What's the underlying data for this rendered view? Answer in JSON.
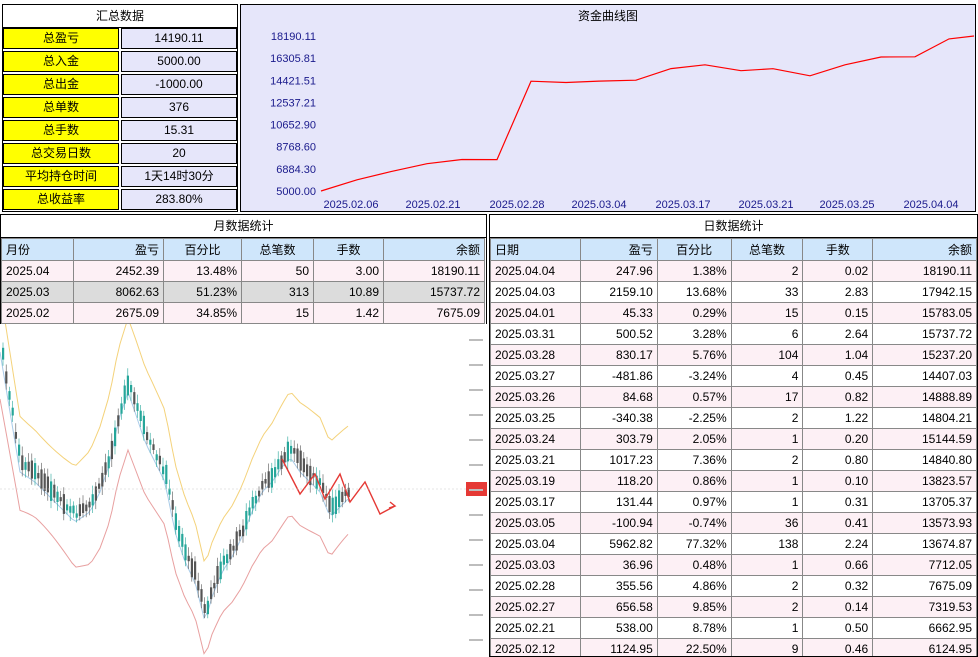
{
  "summary": {
    "title": "汇总数据",
    "rows": [
      {
        "label": "总盈亏",
        "value": "14190.11"
      },
      {
        "label": "总入金",
        "value": "5000.00"
      },
      {
        "label": "总出金",
        "value": "-1000.00"
      },
      {
        "label": "总单数",
        "value": "376"
      },
      {
        "label": "总手数",
        "value": "15.31"
      },
      {
        "label": "总交易日数",
        "value": "20"
      },
      {
        "label": "平均持仓时间",
        "value": "1天14时30分"
      },
      {
        "label": "总收益率",
        "value": "283.80%"
      }
    ]
  },
  "chart_data": {
    "type": "line",
    "title": "资金曲线图",
    "ylim": [
      5000.0,
      18190.11
    ],
    "yticks": [
      "18190.11",
      "16305.81",
      "14421.51",
      "12537.21",
      "10652.90",
      "8768.60",
      "6884.30",
      "5000.00"
    ],
    "xticks": [
      "2025.02.06",
      "2025.02.21",
      "2025.02.28",
      "2025.03.04",
      "2025.03.17",
      "2025.03.21",
      "2025.03.25",
      "2025.04.04"
    ],
    "series": [
      {
        "values": [
          5000,
          5950,
          6650,
          7320,
          7680,
          7675,
          14340,
          14230,
          14350,
          14425,
          15420,
          15738,
          15240,
          15410,
          14805,
          15740,
          16400,
          16420,
          17942,
          18190
        ]
      }
    ],
    "grid": false,
    "line_color": "#ff0000"
  },
  "monthly": {
    "title": "月数据统计",
    "headers": [
      "月份",
      "盈亏",
      "百分比",
      "总笔数",
      "手数",
      "余额"
    ],
    "rows": [
      [
        "2025.04",
        "2452.39",
        "13.48%",
        "50",
        "3.00",
        "18190.11"
      ],
      [
        "2025.03",
        "8062.63",
        "51.23%",
        "313",
        "10.89",
        "15737.72"
      ],
      [
        "2025.02",
        "2675.09",
        "34.85%",
        "15",
        "1.42",
        "7675.09"
      ]
    ]
  },
  "daily": {
    "title": "日数据统计",
    "headers": [
      "日期",
      "盈亏",
      "百分比",
      "总笔数",
      "手数",
      "余额"
    ],
    "rows": [
      [
        "2025.04.04",
        "247.96",
        "1.38%",
        "2",
        "0.02",
        "18190.11"
      ],
      [
        "2025.04.03",
        "2159.10",
        "13.68%",
        "33",
        "2.83",
        "17942.15"
      ],
      [
        "2025.04.01",
        "45.33",
        "0.29%",
        "15",
        "0.15",
        "15783.05"
      ],
      [
        "2025.03.31",
        "500.52",
        "3.28%",
        "6",
        "2.64",
        "15737.72"
      ],
      [
        "2025.03.28",
        "830.17",
        "5.76%",
        "104",
        "1.04",
        "15237.20"
      ],
      [
        "2025.03.27",
        "-481.86",
        "-3.24%",
        "4",
        "0.45",
        "14407.03"
      ],
      [
        "2025.03.26",
        "84.68",
        "0.57%",
        "17",
        "0.82",
        "14888.89"
      ],
      [
        "2025.03.25",
        "-340.38",
        "-2.25%",
        "2",
        "1.22",
        "14804.21"
      ],
      [
        "2025.03.24",
        "303.79",
        "2.05%",
        "1",
        "0.20",
        "15144.59"
      ],
      [
        "2025.03.21",
        "1017.23",
        "7.36%",
        "2",
        "0.80",
        "14840.80"
      ],
      [
        "2025.03.19",
        "118.20",
        "0.86%",
        "1",
        "0.10",
        "13823.57"
      ],
      [
        "2025.03.17",
        "131.44",
        "0.97%",
        "1",
        "0.31",
        "13705.37"
      ],
      [
        "2025.03.05",
        "-100.94",
        "-0.74%",
        "36",
        "0.41",
        "13573.93"
      ],
      [
        "2025.03.04",
        "5962.82",
        "77.32%",
        "138",
        "2.24",
        "13674.87"
      ],
      [
        "2025.03.03",
        "36.96",
        "0.48%",
        "1",
        "0.66",
        "7712.05"
      ],
      [
        "2025.02.28",
        "355.56",
        "4.86%",
        "2",
        "0.32",
        "7675.09"
      ],
      [
        "2025.02.27",
        "656.58",
        "9.85%",
        "2",
        "0.14",
        "7319.53"
      ],
      [
        "2025.02.21",
        "538.00",
        "8.78%",
        "1",
        "0.50",
        "6662.95"
      ],
      [
        "2025.02.12",
        "1124.95",
        "22.50%",
        "9",
        "0.46",
        "6124.95"
      ]
    ]
  },
  "colors": {
    "label_bg": "#ffff00",
    "value_bg": "#e6e6fa",
    "header_bg": "#cfe6fb",
    "line": "#ff0000"
  }
}
